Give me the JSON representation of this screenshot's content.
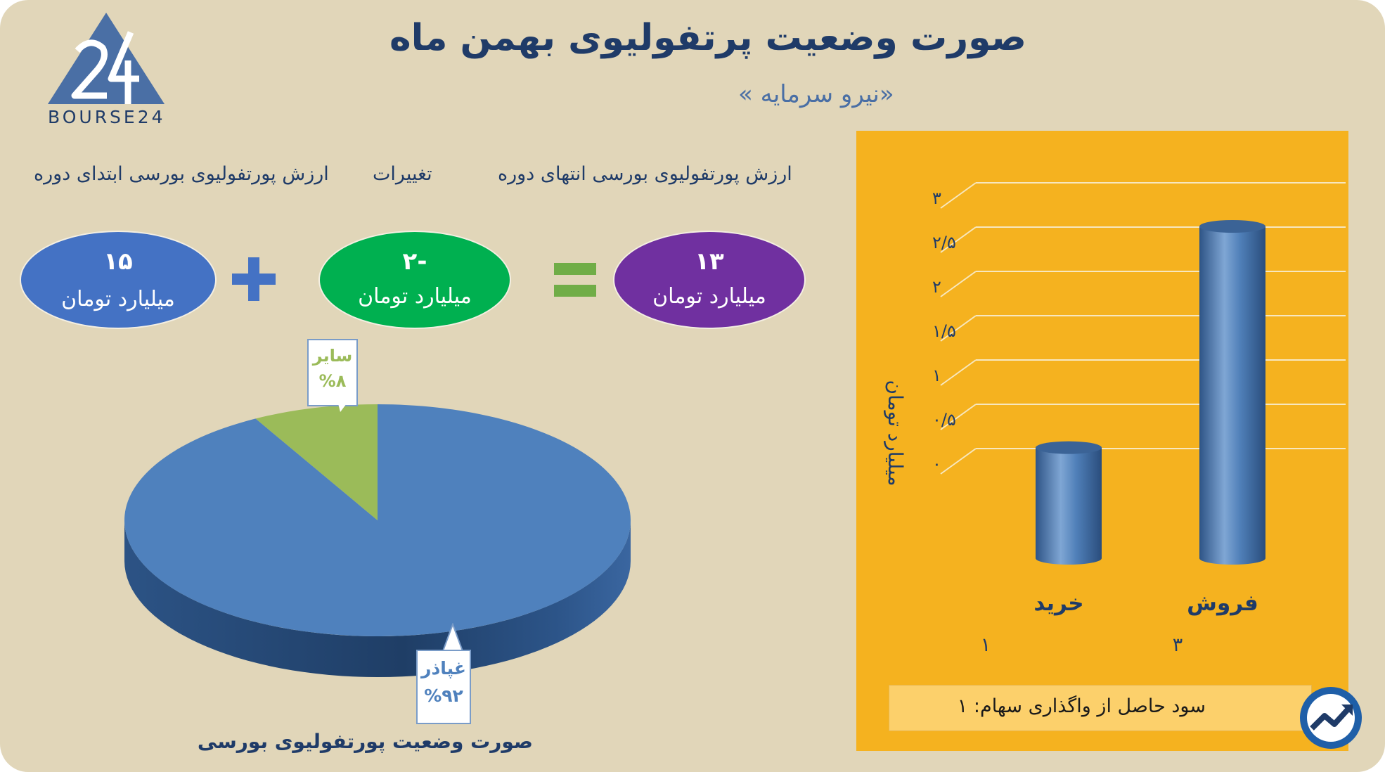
{
  "title": "صورت وضعیت پرتفولیوی بهمن ماه",
  "subtitle": "«نیرو سرمایه »",
  "logo": {
    "text": "BOURSE24",
    "icon": "bourse24-logo-icon"
  },
  "summary": {
    "start": {
      "label": "ارزش پورتفولیوی بورسی ابتدای دوره",
      "value": "۱۵",
      "unit": "میلیارد تومان"
    },
    "change": {
      "label": "تغییرات",
      "value": "-۲",
      "unit": "میلیارد تومان"
    },
    "end": {
      "label": "ارزش پورتفولیوی بورسی انتهای دوره",
      "value": "۱۳",
      "unit": "میلیارد تومان"
    },
    "plus_icon": "plus-icon",
    "equals_icon": "equals-icon",
    "colors": {
      "start": "#4472c4",
      "change": "#00b050",
      "end": "#7030a0",
      "signs": "#4472c4",
      "equals": "#70ad47"
    }
  },
  "chart_data": [
    {
      "type": "pie",
      "title": "صورت وضعیت پورتفولیوی بورسی",
      "slices": [
        {
          "name": "غپاذر",
          "value": 92,
          "label": "%۹۲",
          "color": "#4f81bd"
        },
        {
          "name": "سایر",
          "value": 8,
          "label": "%۸",
          "color": "#9bbb59"
        }
      ]
    },
    {
      "type": "bar",
      "categories": [
        "خرید",
        "فروش"
      ],
      "category_values": [
        "۱",
        "۳"
      ],
      "values": [
        1,
        3
      ],
      "ylabel": "میلیارد تومان",
      "ylim": [
        0,
        3
      ],
      "yticks": [
        "۰",
        "۰/۵",
        "۱",
        "۱/۵",
        "۲",
        "۲/۵",
        "۳"
      ],
      "ytick_values": [
        0,
        0.5,
        1,
        1.5,
        2,
        2.5,
        3
      ],
      "grid": true,
      "colors": {
        "bar": "#4f81bd",
        "panel": "#f5b21f"
      }
    }
  ],
  "footer": {
    "text": "سود حاصل از واگذاری سهام: ۱"
  },
  "badge_icon": "trend-badge-icon"
}
